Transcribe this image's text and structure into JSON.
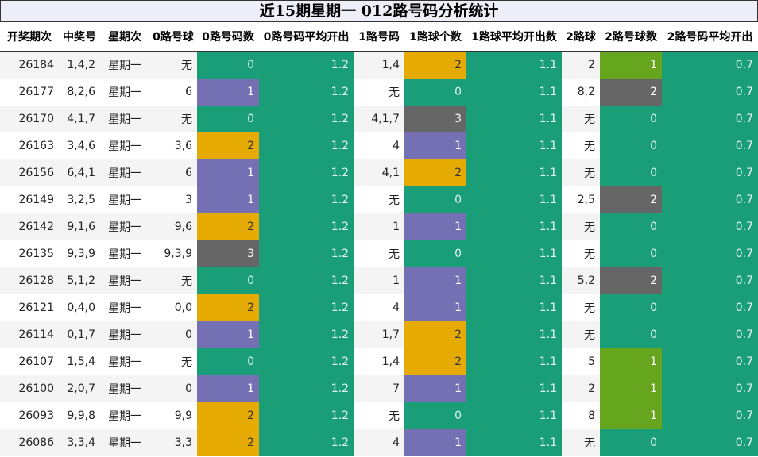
{
  "title": "近15期星期一 012路号码分析统计",
  "headers": [
    "开奖期次",
    "中奖号",
    "星期次",
    "0路号球",
    "0路号码数",
    "0路号码平均开出",
    "1路号码",
    "1路球个数",
    "1路球平均开出数",
    "2路球",
    "2路号球数",
    "2路号码平均开出"
  ],
  "colors": {
    "zero": "#1a9e78",
    "one": "#7570b3",
    "two": "#e6ab02",
    "three": "#666666",
    "green": "#66a61e"
  },
  "rows": [
    {
      "issue": "26184",
      "nums": "1,4,2",
      "weekday": "星期一",
      "r0": "无",
      "c0": "0",
      "a0": "1.2",
      "r1": "1,4",
      "c1": "2",
      "a1": "1.1",
      "r2": "2",
      "c2": "1",
      "a2": "0.7"
    },
    {
      "issue": "26177",
      "nums": "8,2,6",
      "weekday": "星期一",
      "r0": "6",
      "c0": "1",
      "a0": "1.2",
      "r1": "无",
      "c1": "0",
      "a1": "1.1",
      "r2": "8,2",
      "c2": "2",
      "a2": "0.7"
    },
    {
      "issue": "26170",
      "nums": "4,1,7",
      "weekday": "星期一",
      "r0": "无",
      "c0": "0",
      "a0": "1.2",
      "r1": "4,1,7",
      "c1": "3",
      "a1": "1.1",
      "r2": "无",
      "c2": "0",
      "a2": "0.7"
    },
    {
      "issue": "26163",
      "nums": "3,4,6",
      "weekday": "星期一",
      "r0": "3,6",
      "c0": "2",
      "a0": "1.2",
      "r1": "4",
      "c1": "1",
      "a1": "1.1",
      "r2": "无",
      "c2": "0",
      "a2": "0.7"
    },
    {
      "issue": "26156",
      "nums": "6,4,1",
      "weekday": "星期一",
      "r0": "6",
      "c0": "1",
      "a0": "1.2",
      "r1": "4,1",
      "c1": "2",
      "a1": "1.1",
      "r2": "无",
      "c2": "0",
      "a2": "0.7"
    },
    {
      "issue": "26149",
      "nums": "3,2,5",
      "weekday": "星期一",
      "r0": "3",
      "c0": "1",
      "a0": "1.2",
      "r1": "无",
      "c1": "0",
      "a1": "1.1",
      "r2": "2,5",
      "c2": "2",
      "a2": "0.7"
    },
    {
      "issue": "26142",
      "nums": "9,1,6",
      "weekday": "星期一",
      "r0": "9,6",
      "c0": "2",
      "a0": "1.2",
      "r1": "1",
      "c1": "1",
      "a1": "1.1",
      "r2": "无",
      "c2": "0",
      "a2": "0.7"
    },
    {
      "issue": "26135",
      "nums": "9,3,9",
      "weekday": "星期一",
      "r0": "9,3,9",
      "c0": "3",
      "a0": "1.2",
      "r1": "无",
      "c1": "0",
      "a1": "1.1",
      "r2": "无",
      "c2": "0",
      "a2": "0.7"
    },
    {
      "issue": "26128",
      "nums": "5,1,2",
      "weekday": "星期一",
      "r0": "无",
      "c0": "0",
      "a0": "1.2",
      "r1": "1",
      "c1": "1",
      "a1": "1.1",
      "r2": "5,2",
      "c2": "2",
      "a2": "0.7"
    },
    {
      "issue": "26121",
      "nums": "0,4,0",
      "weekday": "星期一",
      "r0": "0,0",
      "c0": "2",
      "a0": "1.2",
      "r1": "4",
      "c1": "1",
      "a1": "1.1",
      "r2": "无",
      "c2": "0",
      "a2": "0.7"
    },
    {
      "issue": "26114",
      "nums": "0,1,7",
      "weekday": "星期一",
      "r0": "0",
      "c0": "1",
      "a0": "1.2",
      "r1": "1,7",
      "c1": "2",
      "a1": "1.1",
      "r2": "无",
      "c2": "0",
      "a2": "0.7"
    },
    {
      "issue": "26107",
      "nums": "1,5,4",
      "weekday": "星期一",
      "r0": "无",
      "c0": "0",
      "a0": "1.2",
      "r1": "1,4",
      "c1": "2",
      "a1": "1.1",
      "r2": "5",
      "c2": "1",
      "a2": "0.7"
    },
    {
      "issue": "26100",
      "nums": "2,0,7",
      "weekday": "星期一",
      "r0": "0",
      "c0": "1",
      "a0": "1.2",
      "r1": "7",
      "c1": "1",
      "a1": "1.1",
      "r2": "2",
      "c2": "1",
      "a2": "0.7"
    },
    {
      "issue": "26093",
      "nums": "9,9,8",
      "weekday": "星期一",
      "r0": "9,9",
      "c0": "2",
      "a0": "1.2",
      "r1": "无",
      "c1": "0",
      "a1": "1.1",
      "r2": "8",
      "c2": "1",
      "a2": "0.7"
    },
    {
      "issue": "26086",
      "nums": "3,3,4",
      "weekday": "星期一",
      "r0": "3,3",
      "c0": "2",
      "a0": "1.2",
      "r1": "4",
      "c1": "1",
      "a1": "1.1",
      "r2": "无",
      "c2": "0",
      "a2": "0.7"
    }
  ]
}
